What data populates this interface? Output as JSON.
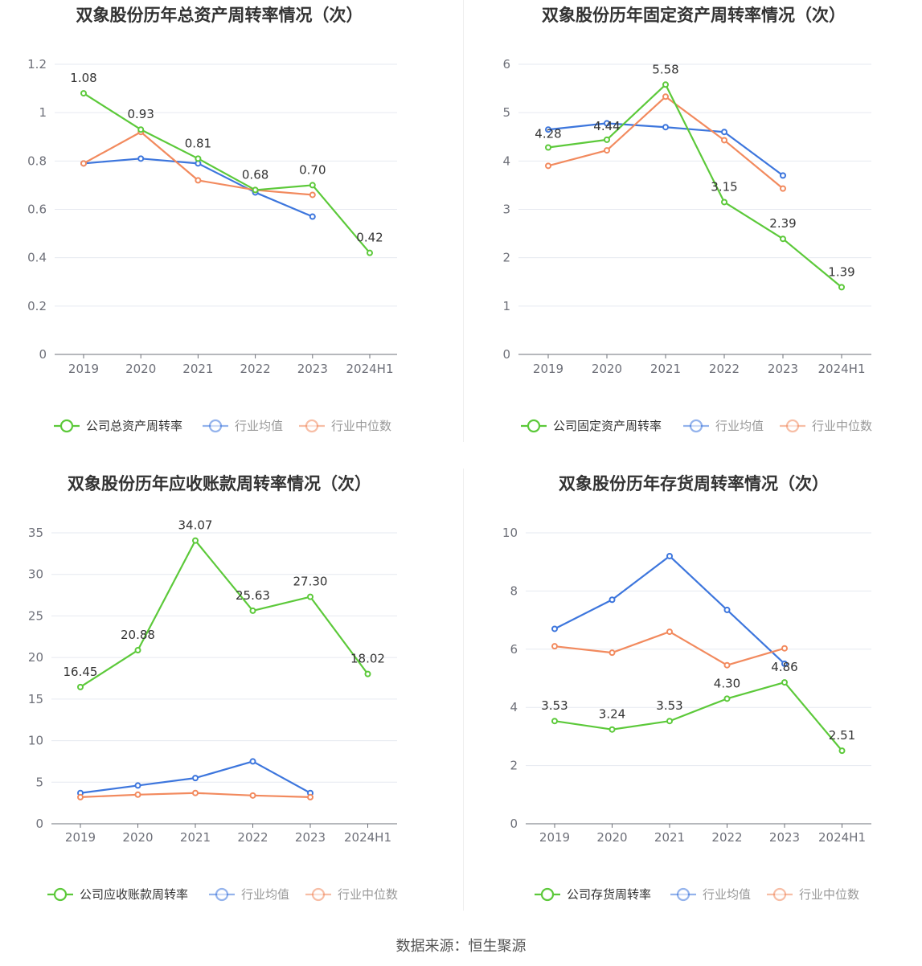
{
  "source_note": "数据来源：恒生聚源",
  "chart_data": [
    {
      "type": "line",
      "title": "双象股份历年总资产周转率情况（次）",
      "categories": [
        "2019",
        "2020",
        "2021",
        "2022",
        "2023",
        "2024H1"
      ],
      "ylim": [
        0,
        1.2
      ],
      "yticks": [
        0,
        0.2,
        0.4,
        0.6,
        0.8,
        1,
        1.2
      ],
      "series": [
        {
          "name": "公司总资产周转率",
          "color": "#5cc93a",
          "values": [
            1.08,
            0.93,
            0.81,
            0.68,
            0.7,
            0.42
          ],
          "labels": [
            "1.08",
            "0.93",
            "0.81",
            "0.68",
            "0.70",
            "0.42"
          ]
        },
        {
          "name": "行业均值",
          "color": "#3d76dd",
          "values": [
            0.79,
            0.81,
            0.79,
            0.67,
            0.57,
            null
          ]
        },
        {
          "name": "行业中位数",
          "color": "#f28a5e",
          "values": [
            0.79,
            0.92,
            0.72,
            0.68,
            0.66,
            null
          ]
        }
      ]
    },
    {
      "type": "line",
      "title": "双象股份历年固定资产周转率情况（次）",
      "categories": [
        "2019",
        "2020",
        "2021",
        "2022",
        "2023",
        "2024H1"
      ],
      "ylim": [
        0,
        6
      ],
      "yticks": [
        0,
        1,
        2,
        3,
        4,
        5,
        6
      ],
      "series": [
        {
          "name": "公司固定资产周转率",
          "color": "#5cc93a",
          "values": [
            4.28,
            4.44,
            5.58,
            3.15,
            2.39,
            1.39
          ],
          "labels": [
            "4.28",
            "4.44",
            "5.58",
            "3.15",
            "2.39",
            "1.39"
          ]
        },
        {
          "name": "行业均值",
          "color": "#3d76dd",
          "values": [
            4.65,
            4.78,
            4.7,
            4.6,
            3.7,
            null
          ]
        },
        {
          "name": "行业中位数",
          "color": "#f28a5e",
          "values": [
            3.9,
            4.22,
            5.33,
            4.43,
            3.43,
            null
          ]
        }
      ]
    },
    {
      "type": "line",
      "title": "双象股份历年应收账款周转率情况（次）",
      "categories": [
        "2019",
        "2020",
        "2021",
        "2022",
        "2023",
        "2024H1"
      ],
      "ylim": [
        0,
        35
      ],
      "yticks": [
        0,
        5,
        10,
        15,
        20,
        25,
        30,
        35
      ],
      "series": [
        {
          "name": "公司应收账款周转率",
          "color": "#5cc93a",
          "values": [
            16.45,
            20.88,
            34.07,
            25.63,
            27.3,
            18.02
          ],
          "labels": [
            "16.45",
            "20.88",
            "34.07",
            "25.63",
            "27.30",
            "18.02"
          ]
        },
        {
          "name": "行业均值",
          "color": "#3d76dd",
          "values": [
            3.7,
            4.6,
            5.5,
            7.5,
            3.7,
            null
          ]
        },
        {
          "name": "行业中位数",
          "color": "#f28a5e",
          "values": [
            3.2,
            3.5,
            3.7,
            3.4,
            3.2,
            null
          ]
        }
      ]
    },
    {
      "type": "line",
      "title": "双象股份历年存货周转率情况（次）",
      "categories": [
        "2019",
        "2020",
        "2021",
        "2022",
        "2023",
        "2024H1"
      ],
      "ylim": [
        0,
        10
      ],
      "yticks": [
        0,
        2,
        4,
        6,
        8,
        10
      ],
      "series": [
        {
          "name": "公司存货周转率",
          "color": "#5cc93a",
          "values": [
            3.53,
            3.24,
            3.53,
            4.3,
            4.86,
            2.51
          ],
          "labels": [
            "3.53",
            "3.24",
            "3.53",
            "4.30",
            "4.86",
            "2.51"
          ]
        },
        {
          "name": "行业均值",
          "color": "#3d76dd",
          "values": [
            6.7,
            7.7,
            9.2,
            7.35,
            5.5,
            null
          ]
        },
        {
          "name": "行业中位数",
          "color": "#f28a5e",
          "values": [
            6.1,
            5.88,
            6.6,
            5.45,
            6.03,
            null
          ]
        }
      ]
    }
  ]
}
